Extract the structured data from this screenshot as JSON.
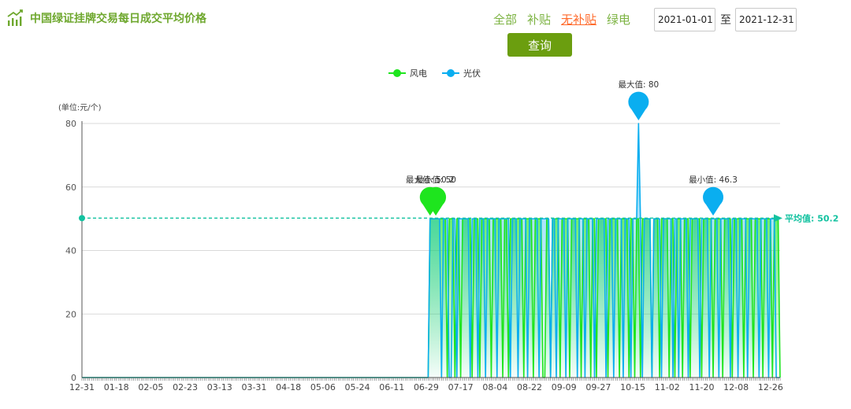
{
  "header": {
    "title": "中国绿证挂牌交易每日成交平均价格",
    "icon": "bar-chart-icon"
  },
  "filters": {
    "tabs": [
      {
        "label": "全部"
      },
      {
        "label": "补贴"
      },
      {
        "label": "无补贴",
        "active": true
      },
      {
        "label": "绿电"
      }
    ]
  },
  "date_range": {
    "start": "2021-01-01",
    "separator": "至",
    "end": "2021-12-31"
  },
  "query_button": "查询",
  "colors": {
    "wind": "#1ee51e",
    "solar": "#0aaef0",
    "mean": "#13c2a0",
    "tab": "#7cb342",
    "tab_active": "#ff6a2b",
    "button": "#6b9e0f"
  },
  "chart_data": {
    "type": "line",
    "unit_label": "(单位:元/个)",
    "ylim": [
      0,
      80
    ],
    "yticks": [
      0,
      20,
      40,
      60,
      80
    ],
    "grid": true,
    "legend_position": "top-center",
    "x_start": "2020-12-31",
    "x_end": "2021-12-31",
    "x_tick_labels": [
      "12-31",
      "01-18",
      "02-05",
      "02-23",
      "03-13",
      "03-31",
      "04-18",
      "05-06",
      "05-24",
      "06-11",
      "06-29",
      "07-17",
      "08-04",
      "08-22",
      "09-09",
      "09-27",
      "10-15",
      "11-02",
      "11-20",
      "12-08",
      "12-26"
    ],
    "series": [
      {
        "name": "风电",
        "color": "#1ee51e",
        "base": 0,
        "level": 50,
        "start": "2021-07-01",
        "active": [
          [
            0,
            1
          ],
          [
            2,
            8
          ],
          [
            10,
            12
          ],
          [
            14,
            15
          ],
          [
            17,
            21
          ],
          [
            23,
            25
          ],
          [
            27,
            31
          ],
          [
            33,
            37
          ],
          [
            39,
            40
          ],
          [
            42,
            48
          ],
          [
            50,
            53
          ],
          [
            55,
            58
          ],
          [
            61,
            62
          ],
          [
            64,
            67
          ],
          [
            69,
            72
          ],
          [
            74,
            78
          ],
          [
            80,
            83
          ],
          [
            85,
            86
          ],
          [
            88,
            92
          ],
          [
            94,
            98
          ],
          [
            100,
            103
          ],
          [
            105,
            106
          ],
          [
            108,
            109
          ],
          [
            111,
            115
          ],
          [
            117,
            119
          ],
          [
            121,
            124
          ],
          [
            126,
            127
          ],
          [
            129,
            131
          ],
          [
            133,
            135
          ],
          [
            137,
            141
          ],
          [
            143,
            147
          ],
          [
            149,
            152
          ],
          [
            154,
            157
          ],
          [
            159,
            163
          ],
          [
            165,
            168
          ],
          [
            170,
            173
          ],
          [
            175,
            178
          ],
          [
            180,
            182
          ]
        ],
        "markers": [
          {
            "label": "最大值",
            "value": 50.2,
            "date": "2021-07-01"
          },
          {
            "label": "最小值",
            "value": 50,
            "date": "2021-07-04"
          }
        ]
      },
      {
        "name": "光伏",
        "color": "#0aaef0",
        "base": 0,
        "level": 50,
        "start": "2021-07-01",
        "active": [
          [
            0,
            5
          ],
          [
            7,
            9
          ],
          [
            12,
            13
          ],
          [
            15,
            20
          ],
          [
            22,
            24
          ],
          [
            26,
            28
          ],
          [
            30,
            34
          ],
          [
            36,
            41
          ],
          [
            43,
            45
          ],
          [
            47,
            50
          ],
          [
            52,
            56
          ],
          [
            58,
            62
          ],
          [
            64,
            65
          ],
          [
            67,
            70
          ],
          [
            72,
            76
          ],
          [
            78,
            80
          ],
          [
            82,
            85
          ],
          [
            87,
            91
          ],
          [
            93,
            95
          ],
          [
            97,
            100
          ],
          [
            102,
            104
          ],
          [
            106,
            110
          ],
          [
            112,
            115
          ],
          [
            117,
            120
          ],
          [
            122,
            126
          ],
          [
            128,
            129
          ],
          [
            131,
            134
          ],
          [
            136,
            140
          ],
          [
            142,
            145
          ],
          [
            147,
            150
          ],
          [
            152,
            156
          ],
          [
            158,
            160
          ],
          [
            162,
            165
          ],
          [
            167,
            171
          ],
          [
            173,
            176
          ],
          [
            178,
            180
          ]
        ],
        "spike": {
          "date": "2021-10-18",
          "value": 80
        },
        "markers": [
          {
            "label": "最大值",
            "value": 80,
            "date": "2021-10-18"
          },
          {
            "label": "最小值",
            "value": 46.3,
            "date": "2021-11-26"
          }
        ]
      }
    ],
    "mark_line": {
      "label": "平均值",
      "value": 50.2
    }
  }
}
